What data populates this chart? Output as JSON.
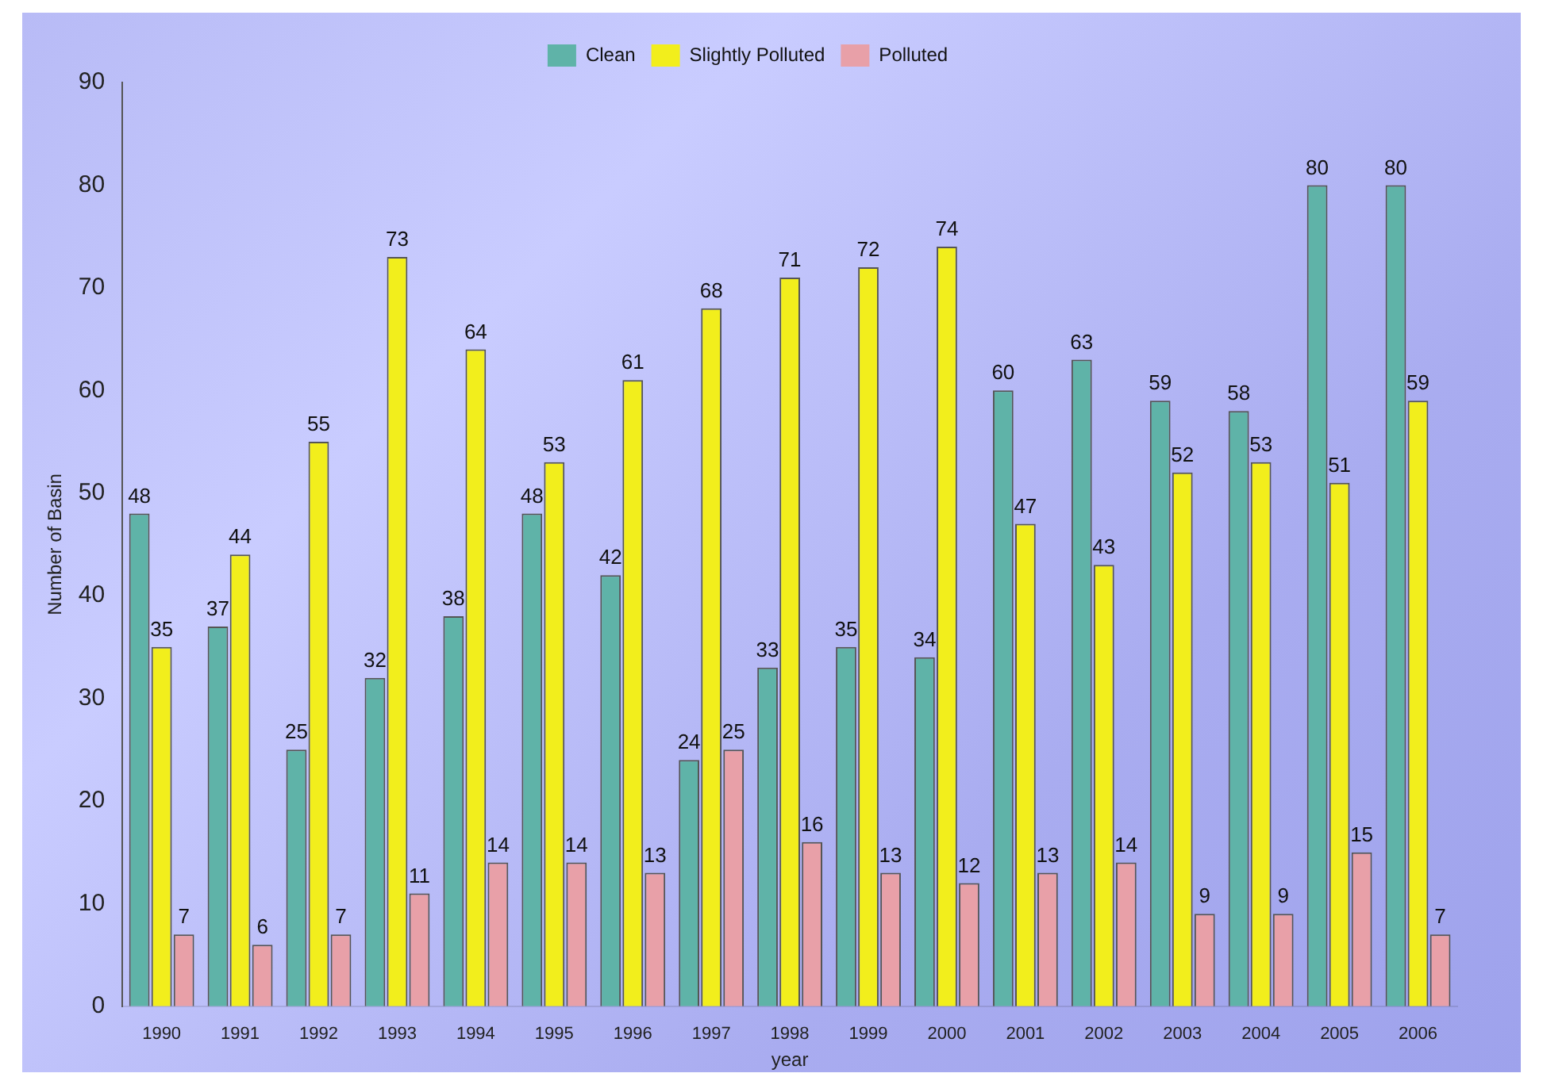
{
  "chart_data": {
    "type": "bar",
    "xlabel": "year",
    "ylabel": "Number of Basin",
    "categories": [
      "1990",
      "1991",
      "1992",
      "1993",
      "1994",
      "1995",
      "1996",
      "1997",
      "1998",
      "1999",
      "2000",
      "2001",
      "2002",
      "2003",
      "2004",
      "2005",
      "2006"
    ],
    "series": [
      {
        "name": "Clean",
        "color": "#5fb3a8",
        "values": [
          48,
          37,
          25,
          32,
          38,
          48,
          42,
          24,
          33,
          35,
          34,
          60,
          63,
          59,
          58,
          80,
          80
        ]
      },
      {
        "name": "Slightly Polluted",
        "color": "#f2ee1c",
        "values": [
          35,
          44,
          55,
          73,
          64,
          53,
          61,
          68,
          71,
          72,
          74,
          47,
          43,
          52,
          53,
          51,
          59
        ]
      },
      {
        "name": "Polluted",
        "color": "#e8a0a8",
        "values": [
          7,
          6,
          7,
          11,
          14,
          14,
          13,
          25,
          16,
          13,
          12,
          13,
          14,
          9,
          9,
          15,
          7
        ]
      }
    ],
    "ylim": [
      0,
      90
    ],
    "yticks": [
      0,
      10,
      20,
      30,
      40,
      50,
      60,
      70,
      80,
      90
    ],
    "grid": false,
    "legend": "top",
    "data_labels": true
  }
}
